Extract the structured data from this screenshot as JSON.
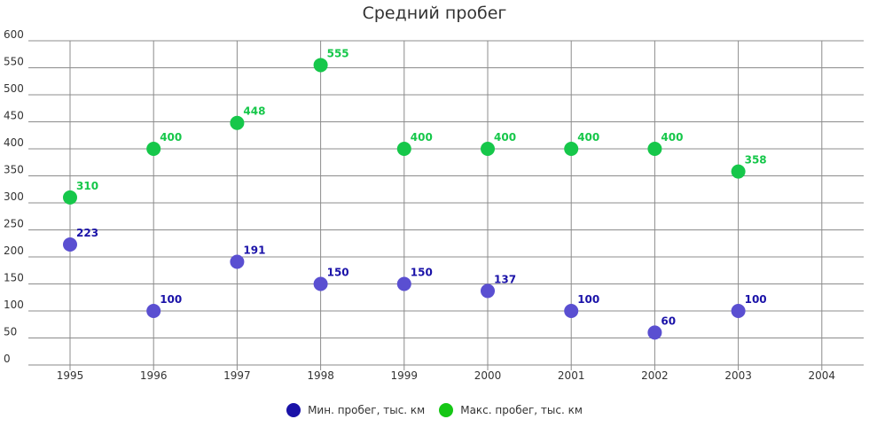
{
  "chart_data": {
    "type": "scatter",
    "title": "Средний пробег",
    "categories": [
      "1995",
      "1996",
      "1997",
      "1998",
      "1999",
      "2000",
      "2001",
      "2002",
      "2003",
      "2004"
    ],
    "y_ticks": [
      "0",
      "50",
      "100",
      "150",
      "200",
      "250",
      "300",
      "350",
      "400",
      "450",
      "500",
      "550",
      "600"
    ],
    "ylim": [
      0,
      600
    ],
    "grid": true,
    "legend_position": "bottom",
    "series": [
      {
        "name": "Мин. пробег, тыс. км",
        "color": "#5a4fd1",
        "label_color": "#1a12a8",
        "legend_color": "#1a12a8",
        "values": [
          223,
          100,
          191,
          150,
          150,
          137,
          100,
          60,
          100,
          null
        ]
      },
      {
        "name": "Макс. пробег, тыс. км",
        "color": "#16c74a",
        "label_color": "#16c74a",
        "legend_color": "#16c716",
        "values": [
          310,
          400,
          448,
          555,
          400,
          400,
          400,
          400,
          358,
          null
        ]
      }
    ]
  }
}
